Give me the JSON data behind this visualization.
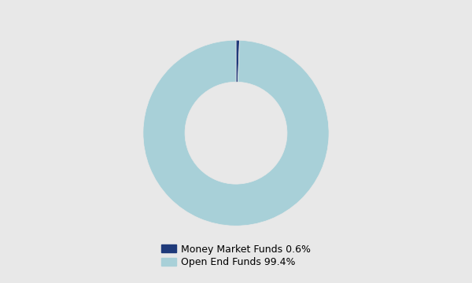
{
  "labels": [
    "Money Market Funds 0.6%",
    "Open End Funds 99.4%"
  ],
  "values": [
    0.6,
    99.4
  ],
  "colors": [
    "#1f3a7a",
    "#a8d0d8"
  ],
  "background_color": "#e8e8e8",
  "wedge_edge_color": "#e8e8e8",
  "donut_hole": 0.55,
  "start_angle": 90,
  "figsize": [
    6.0,
    3.6
  ],
  "dpi": 100,
  "legend_fontsize": 9
}
